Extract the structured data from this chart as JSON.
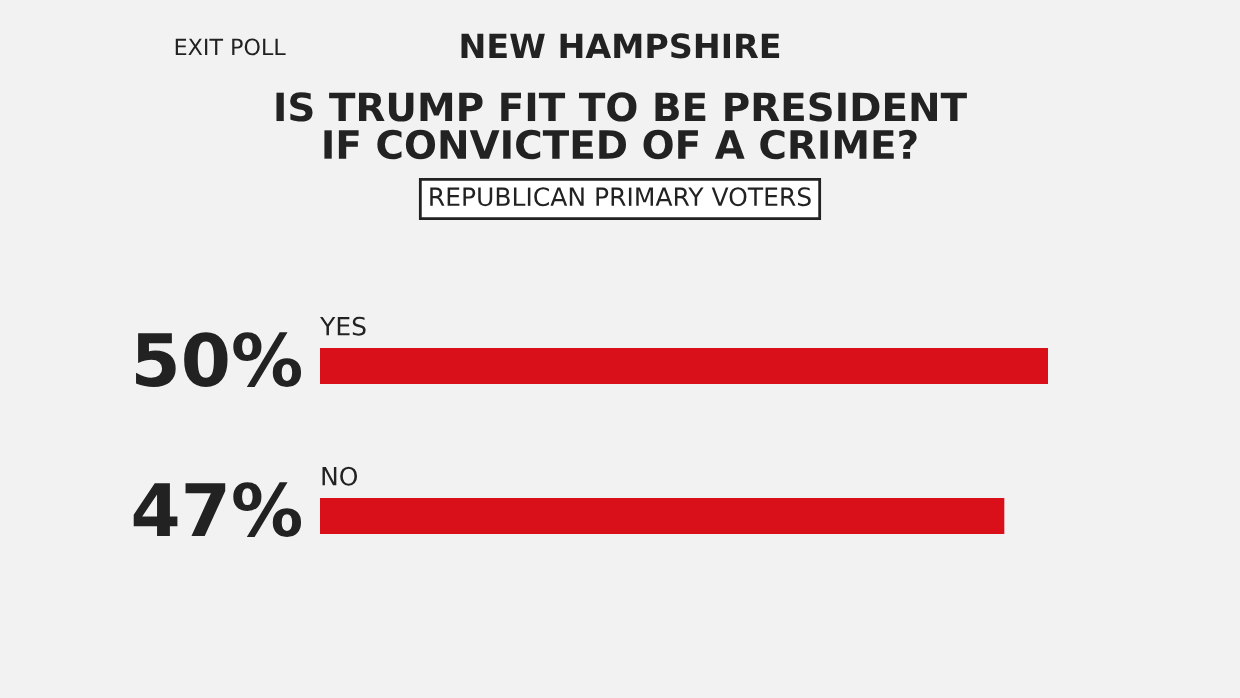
{
  "chart_data": {
    "type": "bar",
    "orientation": "horizontal",
    "title": "IS TRUMP FIT TO BE PRESIDENT\nIF CONVICTED OF A CRIME?",
    "subtitle": "REPUBLICAN PRIMARY VOTERS",
    "annotations": [
      "NEW HAMPSHIRE",
      "EXIT POLL"
    ],
    "categories": [
      "YES",
      "NO"
    ],
    "values": [
      50,
      47
    ],
    "value_labels": [
      "50%",
      "47%"
    ],
    "color": "#d9101a"
  }
}
